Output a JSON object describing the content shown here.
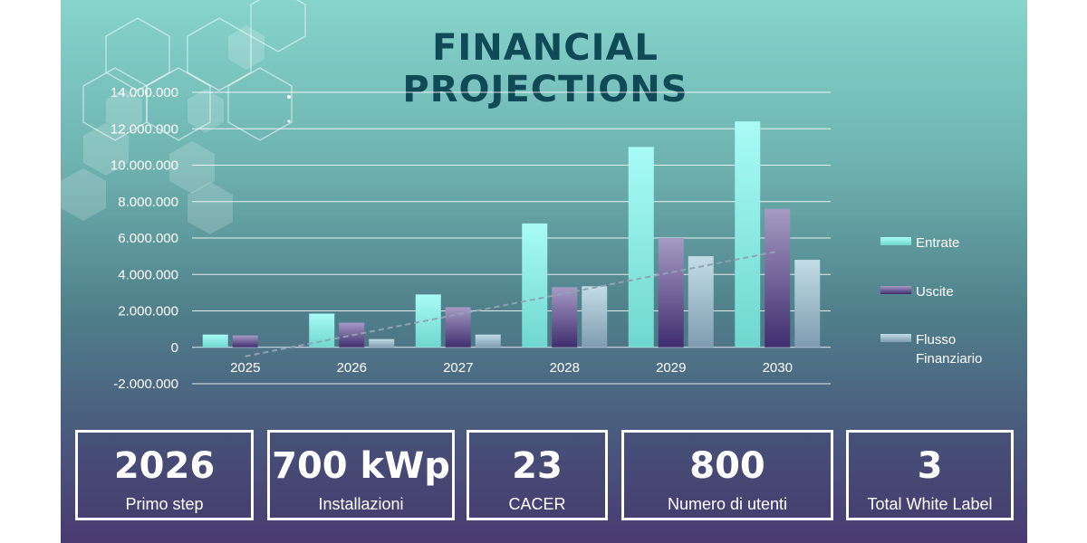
{
  "title": "FINANCIAL PROJECTIONS",
  "chart_data": {
    "type": "bar",
    "categories": [
      "2025",
      "2026",
      "2027",
      "2028",
      "2029",
      "2030"
    ],
    "series": [
      {
        "name": "Entrate",
        "values": [
          700000,
          1850000,
          2900000,
          6800000,
          11000000,
          12400000
        ],
        "color": "#8ff0ea"
      },
      {
        "name": "Uscite",
        "values": [
          650000,
          1350000,
          2200000,
          3300000,
          6000000,
          7600000
        ],
        "color": "#7a6fa0"
      },
      {
        "name": "Flusso Finanziario",
        "values": [
          0,
          450000,
          700000,
          3350000,
          5000000,
          4800000
        ],
        "color": "#a8c7d3"
      }
    ],
    "trendline": {
      "series": "Flusso Finanziario",
      "style": "dashed linear"
    },
    "ylim": [
      -2000000,
      14000000
    ],
    "yticks": [
      {
        "value": 14000000,
        "label": "14.000.000"
      },
      {
        "value": 12000000,
        "label": "12.000.000"
      },
      {
        "value": 10000000,
        "label": "10.000.000"
      },
      {
        "value": 8000000,
        "label": "8.000.000"
      },
      {
        "value": 6000000,
        "label": "6.000.000"
      },
      {
        "value": 4000000,
        "label": "4.000.000"
      },
      {
        "value": 2000000,
        "label": "2.000.000"
      },
      {
        "value": 0,
        "label": "0"
      },
      {
        "value": -2000000,
        "label": "-2.000.000"
      }
    ],
    "grid": true,
    "legend_position": "right"
  },
  "kpis": [
    {
      "value": "2026",
      "label": "Primo step"
    },
    {
      "value": "700 kWp",
      "label": "Installazioni"
    },
    {
      "value": "23",
      "label": "CACER"
    },
    {
      "value": "800",
      "label": "Numero di utenti"
    },
    {
      "value": "3",
      "label": "Total White Label"
    }
  ]
}
